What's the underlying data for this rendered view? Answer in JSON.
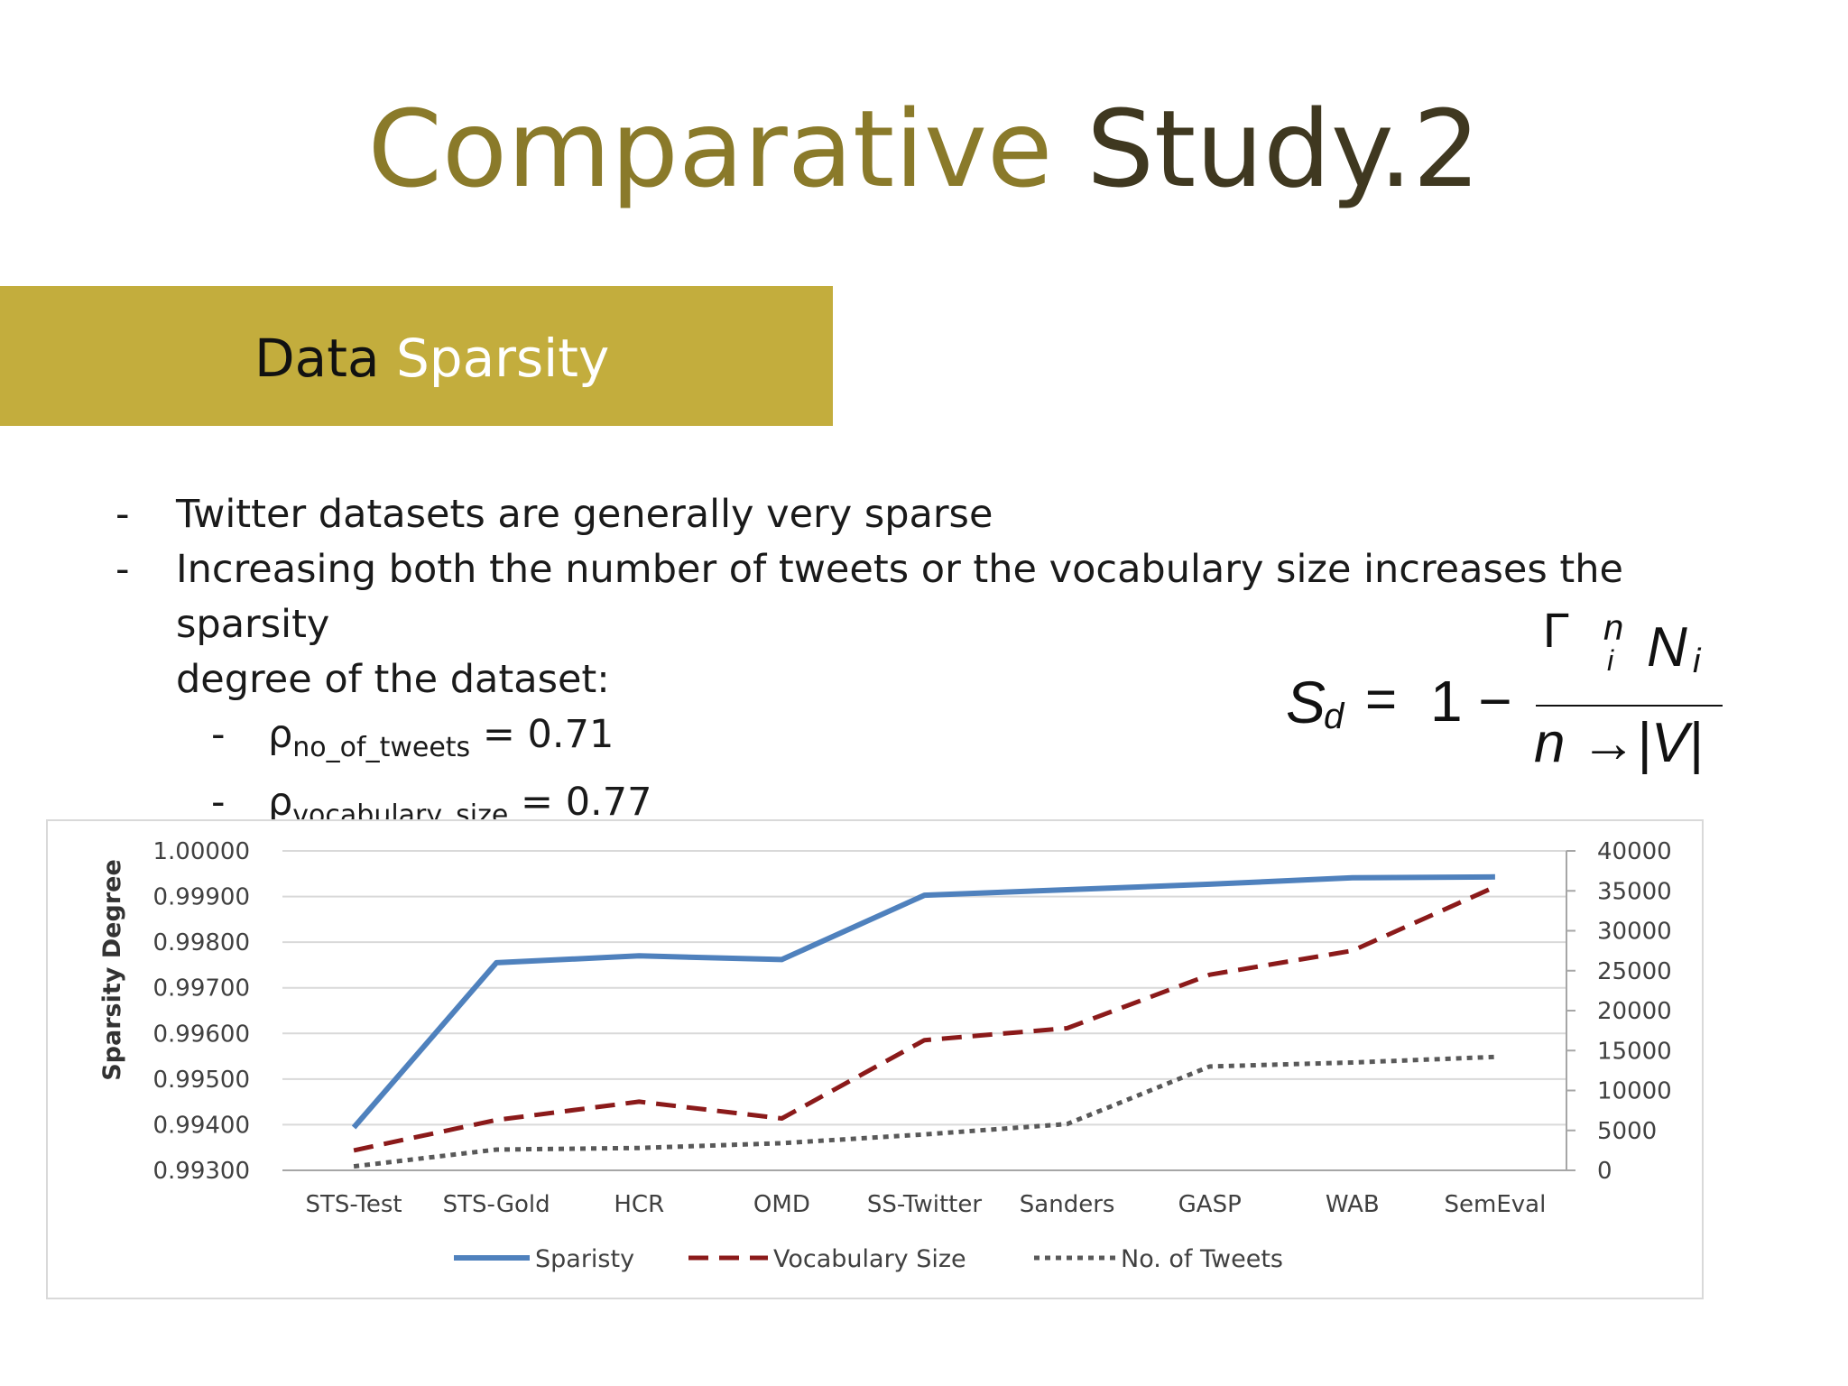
{
  "slide": {
    "title_part1": "Comparative",
    "title_part2": "Study.2",
    "banner_part1": "Data",
    "banner_part2": "Sparsity"
  },
  "bullets": [
    {
      "text": "Twitter datasets are generally very sparse"
    },
    {
      "text": "Increasing both the number of tweets or the vocabulary size increases the sparsity",
      "continuation": "degree of the dataset:"
    }
  ],
  "sub_bullets": [
    {
      "symbol": "ρ",
      "subscript": "no_of_tweets",
      "value": "= 0.71"
    },
    {
      "symbol": "ρ",
      "subscript": "vocabulary_size",
      "value": "= 0.77"
    }
  ],
  "formula": {
    "lhs": "S",
    "lhs_sub": "d",
    "equals": "=",
    "one_minus": "1 −",
    "numerator_top": "n",
    "numerator_sub": "i",
    "numerator_main": "N",
    "numerator_main_sub": "i",
    "denominator": "n →|V|",
    "bracket": "Г",
    "dash": "-"
  },
  "chart_data": {
    "type": "line",
    "categories": [
      "STS-Test",
      "STS-Gold",
      "HCR",
      "OMD",
      "SS-Twitter",
      "Sanders",
      "GASP",
      "WAB",
      "SemEval"
    ],
    "ylabel": "Sparsity Degree",
    "ylim": [
      0.993,
      1.0
    ],
    "y_ticks": [
      "1.00000",
      "0.99900",
      "0.99800",
      "0.99700",
      "0.99600",
      "0.99500",
      "0.99400",
      "0.99300"
    ],
    "y2lim": [
      0,
      40000
    ],
    "y2_ticks": [
      "40000",
      "35000",
      "30000",
      "25000",
      "20000",
      "15000",
      "10000",
      "5000",
      "0"
    ],
    "grid": true,
    "legend_position": "bottom",
    "series": [
      {
        "name": "Sparisty",
        "axis": "left",
        "style": "solid",
        "color": "#4f81bd",
        "values": [
          0.99394,
          0.99755,
          0.9977,
          0.99762,
          0.99903,
          0.99915,
          0.99927,
          0.99941,
          0.99943
        ]
      },
      {
        "name": "Vocabulary Size",
        "axis": "right",
        "style": "dashed",
        "color": "#8b1a1a",
        "values": [
          2500,
          6300,
          8600,
          6500,
          16300,
          17800,
          24500,
          27500,
          35500
        ]
      },
      {
        "name": "No. of Tweets",
        "axis": "right",
        "style": "dotted",
        "color": "#595959",
        "values": [
          500,
          2600,
          2800,
          3400,
          4500,
          5800,
          13000,
          13500,
          14200
        ]
      }
    ]
  }
}
